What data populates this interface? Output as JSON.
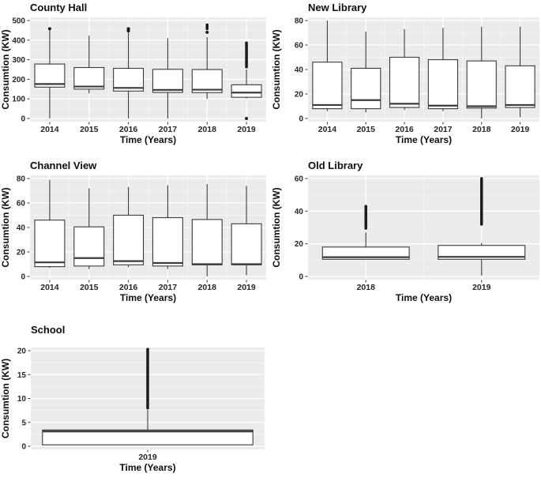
{
  "style": {
    "panel_bg": "#ebebeb",
    "grid_major": "#ffffff",
    "grid_minor": "#f7f7f7",
    "box_fill": "#ffffff",
    "box_stroke": "#3a3a3a",
    "outlier_color": "#1a1a1a",
    "tick_color": "#333333"
  },
  "chart_data": [
    {
      "type": "boxplot",
      "title": "County Hall",
      "xlabel": "Time (Years)",
      "ylabel": "Consumtion (KW)",
      "position": "top-left",
      "ylim": [
        0,
        500
      ],
      "yticks": [
        0,
        100,
        200,
        300,
        400,
        500
      ],
      "grid": true,
      "categories": [
        "2014",
        "2015",
        "2016",
        "2017",
        "2018",
        "2019"
      ],
      "boxes": [
        {
          "year": "2014",
          "whisker_low": 0,
          "q1": 160,
          "median": 176,
          "q3": 278,
          "whisker_high": 450,
          "outliers": [
            458
          ]
        },
        {
          "year": "2015",
          "whisker_low": 128,
          "q1": 150,
          "median": 163,
          "q3": 260,
          "whisker_high": 423,
          "outliers": []
        },
        {
          "year": "2016",
          "whisker_low": 0,
          "q1": 140,
          "median": 156,
          "q3": 256,
          "whisker_high": 438,
          "outliers": [
            447,
            452,
            458
          ]
        },
        {
          "year": "2017",
          "whisker_low": 0,
          "q1": 133,
          "median": 146,
          "q3": 251,
          "whisker_high": 410,
          "outliers": []
        },
        {
          "year": "2018",
          "whisker_low": 100,
          "q1": 132,
          "median": 147,
          "q3": 250,
          "whisker_high": 415,
          "outliers": [
            440
          ],
          "outlier_range": [
            458,
            478
          ]
        },
        {
          "year": "2019",
          "whisker_low": 102,
          "q1": 108,
          "median": 132,
          "q3": 172,
          "whisker_high": 250,
          "outliers": [
            0
          ],
          "outlier_range": [
            263,
            386
          ]
        }
      ]
    },
    {
      "type": "boxplot",
      "title": "New Library",
      "xlabel": "Time (Years)",
      "ylabel": "Consumtion (KW)",
      "position": "top-right",
      "ylim": [
        0,
        80
      ],
      "yticks": [
        0,
        20,
        40,
        60,
        80
      ],
      "grid": true,
      "categories": [
        "2014",
        "2015",
        "2016",
        "2017",
        "2018",
        "2019"
      ],
      "boxes": [
        {
          "year": "2014",
          "whisker_low": 6,
          "q1": 8,
          "median": 11,
          "q3": 46,
          "whisker_high": 80,
          "outliers": []
        },
        {
          "year": "2015",
          "whisker_low": 5,
          "q1": 8,
          "median": 15,
          "q3": 41,
          "whisker_high": 71,
          "outliers": []
        },
        {
          "year": "2016",
          "whisker_low": 7,
          "q1": 9,
          "median": 12,
          "q3": 50,
          "whisker_high": 73,
          "outliers": []
        },
        {
          "year": "2017",
          "whisker_low": 6,
          "q1": 8,
          "median": 10.5,
          "q3": 48,
          "whisker_high": 74,
          "outliers": []
        },
        {
          "year": "2018",
          "whisker_low": 0,
          "q1": 8.5,
          "median": 10,
          "q3": 47,
          "whisker_high": 75,
          "outliers": []
        },
        {
          "year": "2019",
          "whisker_low": 1,
          "q1": 9,
          "median": 11,
          "q3": 43,
          "whisker_high": 75,
          "outliers": []
        }
      ]
    },
    {
      "type": "boxplot",
      "title": "Channel View",
      "xlabel": "Time (Years)",
      "ylabel": "Consumtion (KW)",
      "position": "middle-left",
      "ylim": [
        0,
        80
      ],
      "yticks": [
        0,
        20,
        40,
        60,
        80
      ],
      "grid": true,
      "categories": [
        "2014",
        "2015",
        "2016",
        "2017",
        "2018",
        "2019"
      ],
      "boxes": [
        {
          "year": "2014",
          "whisker_low": 7,
          "q1": 8,
          "median": 11.5,
          "q3": 46,
          "whisker_high": 79,
          "outliers": []
        },
        {
          "year": "2015",
          "whisker_low": 6,
          "q1": 8.5,
          "median": 15,
          "q3": 40.5,
          "whisker_high": 72,
          "outliers": []
        },
        {
          "year": "2016",
          "whisker_low": 7.5,
          "q1": 9.5,
          "median": 12.5,
          "q3": 50,
          "whisker_high": 73,
          "outliers": []
        },
        {
          "year": "2017",
          "whisker_low": 6,
          "q1": 8.5,
          "median": 11,
          "q3": 48,
          "whisker_high": 74.5,
          "outliers": []
        },
        {
          "year": "2018",
          "whisker_low": 0,
          "q1": 9.5,
          "median": 10,
          "q3": 46.5,
          "whisker_high": 75.5,
          "outliers": []
        },
        {
          "year": "2019",
          "whisker_low": 1,
          "q1": 9.5,
          "median": 10,
          "q3": 43,
          "whisker_high": 74,
          "outliers": []
        }
      ]
    },
    {
      "type": "boxplot",
      "title": "Old Library",
      "xlabel": "Time (Years)",
      "ylabel": "Consumtion (KW)",
      "position": "middle-right",
      "ylim": [
        0,
        60
      ],
      "yticks": [
        0,
        20,
        40,
        60
      ],
      "grid": true,
      "categories": [
        "2018",
        "2019"
      ],
      "boxes": [
        {
          "year": "2018",
          "whisker_low": 10.5,
          "q1": 10.5,
          "median": 11.8,
          "q3": 18,
          "whisker_high": 27,
          "outliers": [],
          "outlier_range": [
            29.5,
            43
          ]
        },
        {
          "year": "2019",
          "whisker_low": 0.5,
          "q1": 10.5,
          "median": 12,
          "q3": 19,
          "whisker_high": 20.5,
          "outliers": [],
          "outlier_range": [
            32,
            60
          ]
        }
      ]
    },
    {
      "type": "boxplot",
      "title": "School",
      "xlabel": "Time (Years)",
      "ylabel": "Consumtion (KW)",
      "position": "bottom-left",
      "ylim": [
        0,
        20
      ],
      "yticks": [
        0,
        5,
        10,
        15,
        20
      ],
      "grid": true,
      "categories": [
        "2019"
      ],
      "boxes": [
        {
          "year": "2019",
          "whisker_low": 0.3,
          "q1": 0.3,
          "median": 3.1,
          "q3": 3.4,
          "whisker_high": 7.6,
          "outliers": [],
          "outlier_range": [
            8,
            20.3
          ]
        }
      ]
    }
  ]
}
